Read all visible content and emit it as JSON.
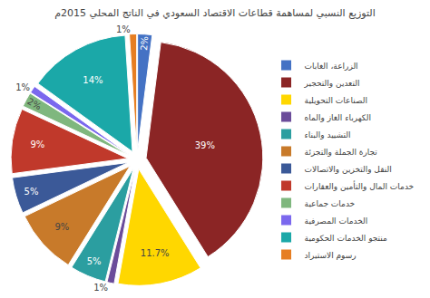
{
  "chart_data": {
    "type": "pie",
    "title": "التوزيع النسبي لمساهمة قطاعات الاقتصاد السعودي في الناتج المحلي 2015م",
    "categories": [
      "الزراعة، الغابات",
      "التعدين والتحجير",
      "الصناعات التحويلية",
      "الكهرباء الغاز والماه",
      "التشييد والبناء",
      "تجارة الجملة والتجزئة",
      "النقل والتخزين والاتصالات",
      "خدمات المال والتأمين والعقارات",
      "خدمات جماعية",
      "الخدمات المصرفية",
      "منتجو الخدمات الحكومية",
      "رسوم الاستيراد"
    ],
    "values": [
      2,
      39,
      11.7,
      1,
      5,
      9,
      5,
      9,
      2,
      1,
      14,
      1
    ],
    "value_labels": [
      "2%",
      "39%",
      "11.7%",
      "1%",
      "5%",
      "9%",
      "5%",
      "9%",
      "2%",
      "1%",
      "14%",
      "1%"
    ],
    "colors": [
      "#4472C4",
      "#8B2525",
      "#FFD700",
      "#6B4C9A",
      "#2B9EA0",
      "#C87A2A",
      "#3B5998",
      "#C0392B",
      "#7FB77E",
      "#7B68EE",
      "#1BA8A8",
      "#E67E22"
    ],
    "data_labels": true,
    "legend": "right"
  }
}
